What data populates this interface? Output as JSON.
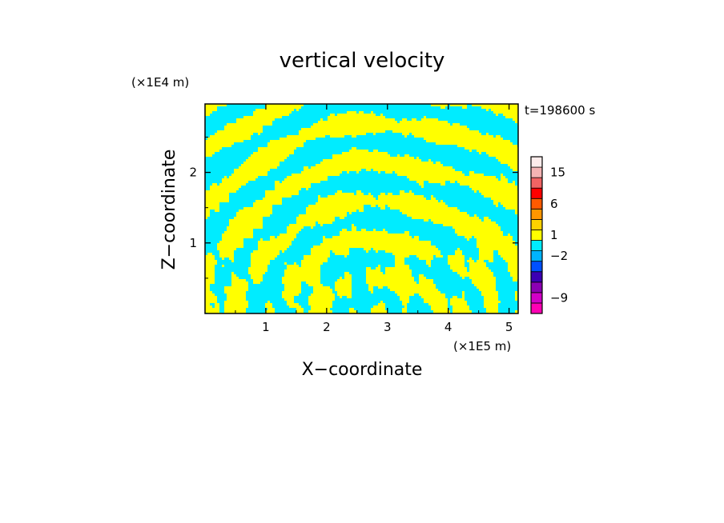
{
  "chart_data": {
    "type": "heatmap",
    "title": "vertical velocity",
    "xlabel": "X−coordinate",
    "ylabel": "Z−coordinate",
    "x_unit_label": "(×1E5 m)",
    "y_unit_label": "(×1E4 m)",
    "time_label": "t=198600 s",
    "xlim": [
      0,
      5.15
    ],
    "ylim": [
      0,
      2.97
    ],
    "x_ticks": [
      {
        "value": 1,
        "label": "1"
      },
      {
        "value": 2,
        "label": "2"
      },
      {
        "value": 3,
        "label": "3"
      },
      {
        "value": 4,
        "label": "4"
      },
      {
        "value": 5,
        "label": "5"
      }
    ],
    "y_ticks": [
      {
        "value": 1,
        "label": "1"
      },
      {
        "value": 2,
        "label": "2"
      }
    ],
    "colorbar": {
      "bands": [
        {
          "color": "#ff00b4"
        },
        {
          "color": "#d200c8"
        },
        {
          "color": "#8c00b4"
        },
        {
          "color": "#3c00b4"
        },
        {
          "color": "#0050ff"
        },
        {
          "color": "#00b4ff"
        },
        {
          "color": "#00ecff"
        },
        {
          "color": "#ffff00"
        },
        {
          "color": "#ffd200"
        },
        {
          "color": "#ff9600"
        },
        {
          "color": "#ff5a00"
        },
        {
          "color": "#ff0000"
        },
        {
          "color": "#f06464"
        },
        {
          "color": "#f4b4b4"
        },
        {
          "color": "#fdeceb"
        }
      ],
      "label_values": [
        {
          "value": 15,
          "label": "15",
          "band": 13
        },
        {
          "value": 6,
          "label": "6",
          "band": 10
        },
        {
          "value": 1,
          "label": "1",
          "band": 7
        },
        {
          "value": -2,
          "label": "−2",
          "band": 5
        },
        {
          "value": -9,
          "label": "−9",
          "band": 1
        }
      ]
    },
    "field_colors": {
      "positive": "#ffff00",
      "negative": "#00ecff"
    }
  }
}
